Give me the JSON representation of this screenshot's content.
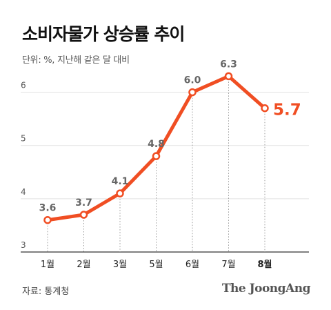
{
  "title": "소비자물가 상승률 추이",
  "subtitle": "단위: %, 지난해 같은 달 대비",
  "source": "자료: 통계청",
  "brand": "The JoongAng",
  "colors": {
    "line": "#F04E23",
    "grid": "#e2e2e2",
    "axis": "#333333",
    "label": "#666666",
    "highlight": "#F04E23"
  },
  "chart_data": {
    "type": "line",
    "categories": [
      "1월",
      "2월",
      "3월",
      "5월",
      "6월",
      "7월",
      "8월"
    ],
    "values": [
      3.6,
      3.7,
      4.1,
      4.8,
      6.0,
      6.3,
      5.7
    ],
    "value_labels": [
      "3.6",
      "3.7",
      "4.1",
      "4.8",
      "6.0",
      "6.3",
      "5.7"
    ],
    "yticks": [
      3,
      4,
      5,
      6
    ],
    "ytick_labels": [
      "3",
      "4",
      "5",
      "6"
    ],
    "ylim": [
      3,
      6.5
    ],
    "grid": true,
    "highlight_index": 6
  }
}
